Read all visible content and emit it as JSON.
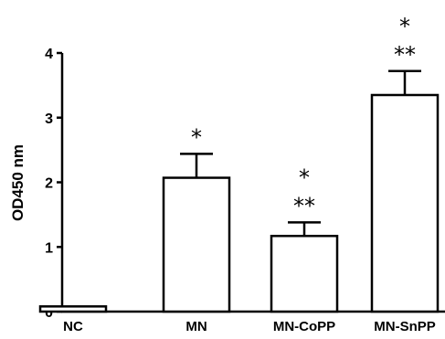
{
  "chart_data": {
    "type": "bar",
    "title": "",
    "xlabel": "",
    "ylabel": "OD450 nm",
    "ylim": [
      0,
      4
    ],
    "yticks": [
      0,
      1,
      2,
      3,
      4
    ],
    "grid": false,
    "categories": [
      "NC",
      "MN",
      "MN-CoPP",
      "MN-SnPP"
    ],
    "values": [
      0.08,
      2.07,
      1.17,
      3.35
    ],
    "error": [
      0.0,
      0.37,
      0.21,
      0.37
    ],
    "annotations": [
      {
        "category": "MN",
        "marks": [
          "*"
        ]
      },
      {
        "category": "MN-CoPP",
        "marks": [
          "*",
          "**"
        ]
      },
      {
        "category": "MN-SnPP",
        "marks": [
          "*",
          "**"
        ]
      }
    ],
    "colors": {
      "bar_fill": "#ffffff",
      "bar_stroke": "#000000",
      "axis": "#000000"
    }
  }
}
